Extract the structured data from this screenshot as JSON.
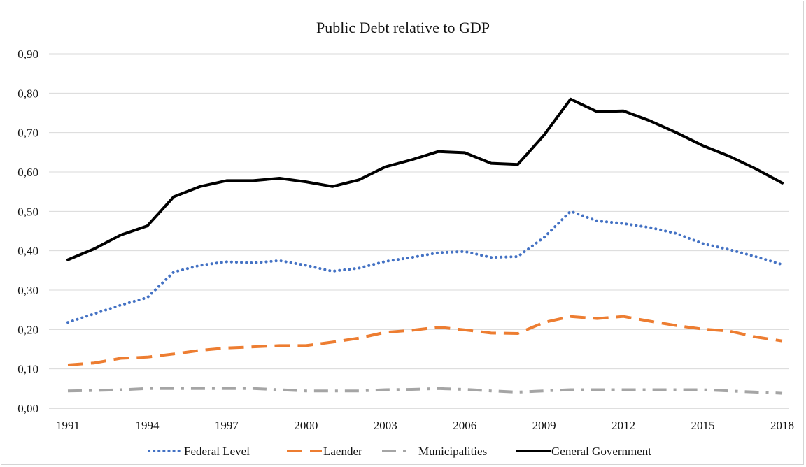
{
  "chart_data": {
    "type": "line",
    "title": "Public Debt relative to GDP",
    "xlabel": "",
    "ylabel": "",
    "x": [
      1991,
      1992,
      1993,
      1994,
      1995,
      1996,
      1997,
      1998,
      1999,
      2000,
      2001,
      2002,
      2003,
      2004,
      2005,
      2006,
      2007,
      2008,
      2009,
      2010,
      2011,
      2012,
      2013,
      2014,
      2015,
      2016,
      2017,
      2018
    ],
    "x_tick_labels": [
      "1991",
      "1994",
      "1997",
      "2000",
      "2003",
      "2006",
      "2009",
      "2012",
      "2015",
      "2018"
    ],
    "y_tick_labels": [
      "0,00",
      "0,10",
      "0,20",
      "0,30",
      "0,40",
      "0,50",
      "0,60",
      "0,70",
      "0,80",
      "0,90"
    ],
    "ylim": [
      0,
      0.9
    ],
    "y_ticks": [
      0,
      0.1,
      0.2,
      0.3,
      0.4,
      0.5,
      0.6,
      0.7,
      0.8,
      0.9
    ],
    "grid": "horizontal",
    "legend_position": "bottom",
    "series": [
      {
        "name": "Federal Level",
        "color": "#4472c4",
        "style": "dotted",
        "values": [
          0.218,
          0.24,
          0.262,
          0.281,
          0.346,
          0.363,
          0.372,
          0.369,
          0.375,
          0.363,
          0.348,
          0.356,
          0.373,
          0.383,
          0.395,
          0.398,
          0.383,
          0.385,
          0.434,
          0.5,
          0.476,
          0.469,
          0.459,
          0.444,
          0.418,
          0.403,
          0.385,
          0.365
        ]
      },
      {
        "name": "Laender",
        "color": "#ed7d31",
        "style": "dashed",
        "values": [
          0.11,
          0.115,
          0.127,
          0.13,
          0.138,
          0.147,
          0.153,
          0.156,
          0.159,
          0.159,
          0.168,
          0.178,
          0.193,
          0.198,
          0.206,
          0.199,
          0.191,
          0.19,
          0.218,
          0.233,
          0.228,
          0.233,
          0.221,
          0.21,
          0.201,
          0.196,
          0.181,
          0.171
        ]
      },
      {
        "name": "Municipalities",
        "color": "#a5a5a5",
        "style": "dashdot",
        "values": [
          0.044,
          0.045,
          0.047,
          0.05,
          0.05,
          0.05,
          0.05,
          0.05,
          0.047,
          0.044,
          0.044,
          0.044,
          0.047,
          0.048,
          0.05,
          0.048,
          0.044,
          0.041,
          0.044,
          0.047,
          0.047,
          0.047,
          0.047,
          0.047,
          0.047,
          0.044,
          0.041,
          0.038
        ]
      },
      {
        "name": "General Government",
        "color": "#000000",
        "style": "solid",
        "values": [
          0.377,
          0.405,
          0.44,
          0.463,
          0.537,
          0.563,
          0.578,
          0.578,
          0.584,
          0.575,
          0.563,
          0.58,
          0.613,
          0.631,
          0.652,
          0.649,
          0.622,
          0.619,
          0.694,
          0.785,
          0.753,
          0.755,
          0.73,
          0.7,
          0.667,
          0.64,
          0.608,
          0.572
        ]
      }
    ]
  }
}
